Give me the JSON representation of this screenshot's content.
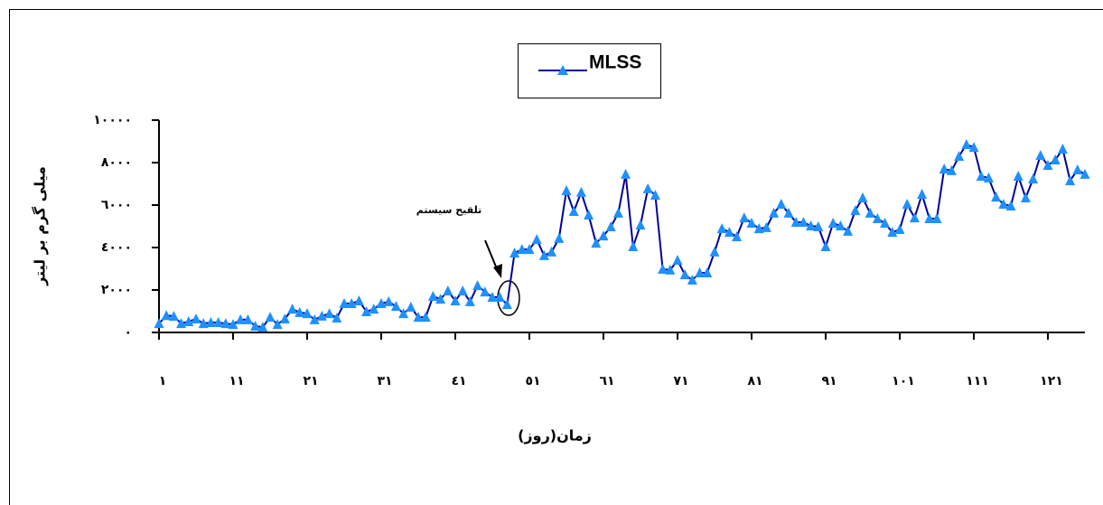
{
  "chart_data": {
    "type": "line",
    "xlabel": "زمان(روز)",
    "ylabel": "میلی گرم بر لیتر",
    "annotation": "تلقیح سیستم",
    "x": [
      1,
      2,
      3,
      4,
      5,
      6,
      7,
      8,
      9,
      10,
      11,
      12,
      13,
      14,
      15,
      16,
      17,
      18,
      19,
      20,
      21,
      22,
      23,
      24,
      25,
      26,
      27,
      28,
      29,
      30,
      31,
      32,
      33,
      34,
      35,
      36,
      37,
      38,
      39,
      40,
      41,
      42,
      43,
      44,
      45,
      46,
      47,
      48,
      49,
      50,
      51,
      52,
      53,
      54,
      55,
      56,
      57,
      58,
      59,
      60,
      61,
      62,
      63,
      64,
      65,
      66,
      67,
      68,
      69,
      70,
      71,
      72,
      73,
      74,
      75,
      76,
      77,
      78,
      79,
      80,
      81,
      82,
      83,
      84,
      85,
      86,
      87,
      88,
      89,
      90,
      91,
      92,
      93,
      94,
      95,
      96,
      97,
      98,
      99,
      100,
      101,
      102,
      103,
      104,
      105,
      106,
      107,
      108,
      109,
      110,
      111,
      112,
      113,
      114,
      115,
      116,
      117,
      118,
      119,
      120,
      121,
      122,
      123,
      124,
      125,
      126
    ],
    "series": [
      {
        "name": "MLSS",
        "color": "#000099",
        "marker_color": "#1e90ff",
        "values": [
          420,
          800,
          760,
          420,
          510,
          640,
          420,
          470,
          470,
          420,
          380,
          600,
          600,
          300,
          250,
          720,
          380,
          640,
          1100,
          940,
          890,
          600,
          770,
          890,
          680,
          1360,
          1360,
          1490,
          980,
          1100,
          1360,
          1450,
          1230,
          890,
          1190,
          720,
          720,
          1700,
          1570,
          1960,
          1490,
          1960,
          1450,
          2210,
          1910,
          1660,
          1660,
          1320,
          3740,
          3910,
          3910,
          4380,
          3620,
          3790,
          4430,
          6680,
          5700,
          6600,
          5530,
          4210,
          4550,
          4980,
          5620,
          7450,
          4040,
          5060,
          6770,
          6470,
          2980,
          2940,
          3400,
          2720,
          2470,
          2810,
          2810,
          3790,
          4890,
          4720,
          4510,
          5400,
          5150,
          4890,
          4940,
          5620,
          6040,
          5620,
          5190,
          5190,
          5020,
          4980,
          4040,
          5150,
          5020,
          4770,
          5740,
          6340,
          5620,
          5360,
          5150,
          4720,
          4850,
          6040,
          5400,
          6510,
          5360,
          5360,
          7700,
          7620,
          8300,
          8850,
          8720,
          7360,
          7280,
          6380,
          6040,
          5960,
          7360,
          6340,
          7230,
          8340,
          7870,
          8130,
          8640,
          7150,
          7660,
          7450
        ]
      }
    ],
    "xlim": [
      1,
      126
    ],
    "xticks": [
      {
        "value": 1,
        "label": "١"
      },
      {
        "value": 11,
        "label": "١١"
      },
      {
        "value": 21,
        "label": "٢١"
      },
      {
        "value": 31,
        "label": "٣١"
      },
      {
        "value": 41,
        "label": "٤١"
      },
      {
        "value": 51,
        "label": "٥١"
      },
      {
        "value": 61,
        "label": "٦١"
      },
      {
        "value": 71,
        "label": "٧١"
      },
      {
        "value": 81,
        "label": "٨١"
      },
      {
        "value": 91,
        "label": "٩١"
      },
      {
        "value": 101,
        "label": "١٠١"
      },
      {
        "value": 111,
        "label": "١١١"
      },
      {
        "value": 121,
        "label": "١٢١"
      }
    ],
    "ylim": [
      0,
      10000
    ],
    "yticks": [
      {
        "value": 0,
        "label": "٠"
      },
      {
        "value": 2000,
        "label": "٢٠٠٠"
      },
      {
        "value": 4000,
        "label": "٤٠٠٠"
      },
      {
        "value": 6000,
        "label": "٦٠٠٠"
      },
      {
        "value": 8000,
        "label": "٨٠٠٠"
      },
      {
        "value": 10000,
        "label": "١٠٠٠٠"
      }
    ],
    "grid": false,
    "legend": "top"
  }
}
